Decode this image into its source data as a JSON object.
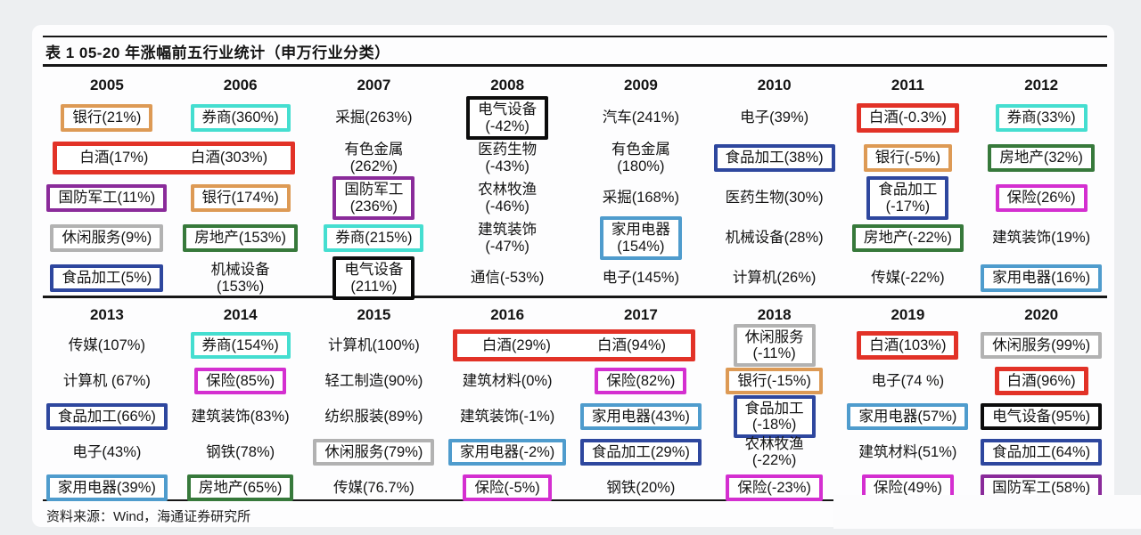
{
  "colors": {
    "red": "#e23227",
    "orange": "#dd9a55",
    "purple": "#8a2b9a",
    "gray": "#b2b2b2",
    "blue": "#2e479e",
    "cyan": "#45ded0",
    "green": "#37793b",
    "black": "#0c0c0c",
    "lightblue": "#4f9ccd",
    "magenta": "#d42fd0"
  },
  "chart_data": {
    "type": "table",
    "title": "表 1 05-20 年涨幅前五行业统计（申万行业分类）",
    "source": "资料来源：Wind，海通证券研究所",
    "halves": [
      {
        "columns": [
          {
            "year": "2005",
            "entries": [
              {
                "text": "银行(21%)",
                "box": "orange"
              },
              {
                "span": 2,
                "texts": [
                  "白酒(17%)",
                  "白酒(303%)"
                ],
                "box": "red"
              },
              {
                "text": "国防军工(11%)",
                "box": "purple"
              },
              {
                "text": "休闲服务(9%)",
                "box": "gray"
              },
              {
                "text": "食品加工(5%)",
                "box": "blue"
              }
            ]
          },
          {
            "year": "2006",
            "entries": [
              {
                "text": "券商(360%)",
                "box": "cyan"
              },
              {
                "skip": true
              },
              {
                "text": "银行(174%)",
                "box": "orange"
              },
              {
                "text": "房地产(153%)",
                "box": "green"
              },
              {
                "lines": [
                  "机械设备",
                  "(153%)"
                ]
              }
            ]
          },
          {
            "year": "2007",
            "entries": [
              {
                "text": "采掘(263%)"
              },
              {
                "lines": [
                  "有色金属",
                  "(262%)"
                ]
              },
              {
                "lines": [
                  "国防军工",
                  "(236%)"
                ],
                "box": "purple"
              },
              {
                "text": "券商(215%)",
                "box": "cyan"
              },
              {
                "lines": [
                  "电气设备",
                  "(211%)"
                ],
                "box": "black"
              }
            ]
          },
          {
            "year": "2008",
            "entries": [
              {
                "lines": [
                  "电气设备",
                  "(-42%)"
                ],
                "box": "black"
              },
              {
                "lines": [
                  "医药生物",
                  "(-43%)"
                ]
              },
              {
                "lines": [
                  "农林牧渔",
                  "(-46%)"
                ]
              },
              {
                "lines": [
                  "建筑装饰",
                  "(-47%)"
                ]
              },
              {
                "text": "通信(-53%)"
              }
            ]
          },
          {
            "year": "2009",
            "entries": [
              {
                "text": "汽车(241%)"
              },
              {
                "lines": [
                  "有色金属",
                  "(180%)"
                ]
              },
              {
                "text": "采掘(168%)"
              },
              {
                "lines": [
                  "家用电器",
                  "(154%)"
                ],
                "box": "lightblue"
              },
              {
                "text": "电子(145%)"
              }
            ]
          },
          {
            "year": "2010",
            "entries": [
              {
                "text": "电子(39%)"
              },
              {
                "text": "食品加工(38%)",
                "box": "blue"
              },
              {
                "text": "医药生物(30%)"
              },
              {
                "text": "机械设备(28%)"
              },
              {
                "text": "计算机(26%)"
              }
            ]
          },
          {
            "year": "2011",
            "entries": [
              {
                "text": "白酒(-0.3%)",
                "box": "red"
              },
              {
                "text": "银行(-5%)",
                "box": "orange"
              },
              {
                "lines": [
                  "食品加工",
                  "(-17%)"
                ],
                "box": "blue"
              },
              {
                "text": "房地产(-22%)",
                "box": "green"
              },
              {
                "text": "传媒(-22%)"
              }
            ]
          },
          {
            "year": "2012",
            "entries": [
              {
                "text": "券商(33%)",
                "box": "cyan"
              },
              {
                "text": "房地产(32%)",
                "box": "green"
              },
              {
                "text": "保险(26%)",
                "box": "magenta"
              },
              {
                "text": "建筑装饰(19%)"
              },
              {
                "text": "家用电器(16%)",
                "box": "lightblue"
              }
            ]
          }
        ]
      },
      {
        "columns": [
          {
            "year": "2013",
            "entries": [
              {
                "text": "传媒(107%)"
              },
              {
                "text": "计算机 (67%)"
              },
              {
                "text": "食品加工(66%)",
                "box": "blue"
              },
              {
                "text": "电子(43%)"
              },
              {
                "text": "家用电器(39%)",
                "box": "lightblue"
              }
            ]
          },
          {
            "year": "2014",
            "entries": [
              {
                "text": "券商(154%)",
                "box": "cyan"
              },
              {
                "text": "保险(85%)",
                "box": "magenta"
              },
              {
                "text": "建筑装饰(83%)"
              },
              {
                "text": "钢铁(78%)"
              },
              {
                "text": "房地产(65%)",
                "box": "green"
              }
            ]
          },
          {
            "year": "2015",
            "entries": [
              {
                "text": "计算机(100%)"
              },
              {
                "text": "轻工制造(90%)"
              },
              {
                "text": "纺织服装(89%)"
              },
              {
                "text": "休闲服务(79%)",
                "box": "gray"
              },
              {
                "text": "传媒(76.7%)"
              }
            ]
          },
          {
            "year": "2016",
            "entries": [
              {
                "span": 2,
                "texts": [
                  "白酒(29%)",
                  "白酒(94%)"
                ],
                "box": "red"
              },
              {
                "text": "建筑材料(0%)"
              },
              {
                "text": "建筑装饰(-1%)"
              },
              {
                "text": "家用电器(-2%)",
                "box": "lightblue"
              },
              {
                "text": "保险(-5%)",
                "box": "magenta"
              }
            ]
          },
          {
            "year": "2017",
            "entries": [
              {
                "skip": true
              },
              {
                "text": "保险(82%)",
                "box": "magenta"
              },
              {
                "text": "家用电器(43%)",
                "box": "lightblue"
              },
              {
                "text": "食品加工(29%)",
                "box": "blue"
              },
              {
                "text": "钢铁(20%)"
              }
            ]
          },
          {
            "year": "2018",
            "entries": [
              {
                "lines": [
                  "休闲服务",
                  "(-11%)"
                ],
                "box": "gray"
              },
              {
                "text": "银行(-15%)",
                "box": "orange"
              },
              {
                "lines": [
                  "食品加工",
                  "(-18%)"
                ],
                "box": "blue"
              },
              {
                "lines": [
                  "农林牧渔",
                  "(-22%)"
                ]
              },
              {
                "text": "保险(-23%)",
                "box": "magenta"
              }
            ]
          },
          {
            "year": "2019",
            "entries": [
              {
                "text": "白酒(103%)",
                "box": "red"
              },
              {
                "text": "电子(74 %)"
              },
              {
                "text": "家用电器(57%)",
                "box": "lightblue"
              },
              {
                "text": "建筑材料(51%)"
              },
              {
                "text": "保险(49%)",
                "box": "magenta"
              }
            ]
          },
          {
            "year": "2020",
            "entries": [
              {
                "text": "休闲服务(99%)",
                "box": "gray"
              },
              {
                "text": "白酒(96%)",
                "box": "red"
              },
              {
                "text": "电气设备(95%)",
                "box": "black"
              },
              {
                "text": "食品加工(64%)",
                "box": "blue"
              },
              {
                "text": "国防军工(58%)",
                "box": "purple"
              }
            ]
          }
        ]
      }
    ]
  }
}
